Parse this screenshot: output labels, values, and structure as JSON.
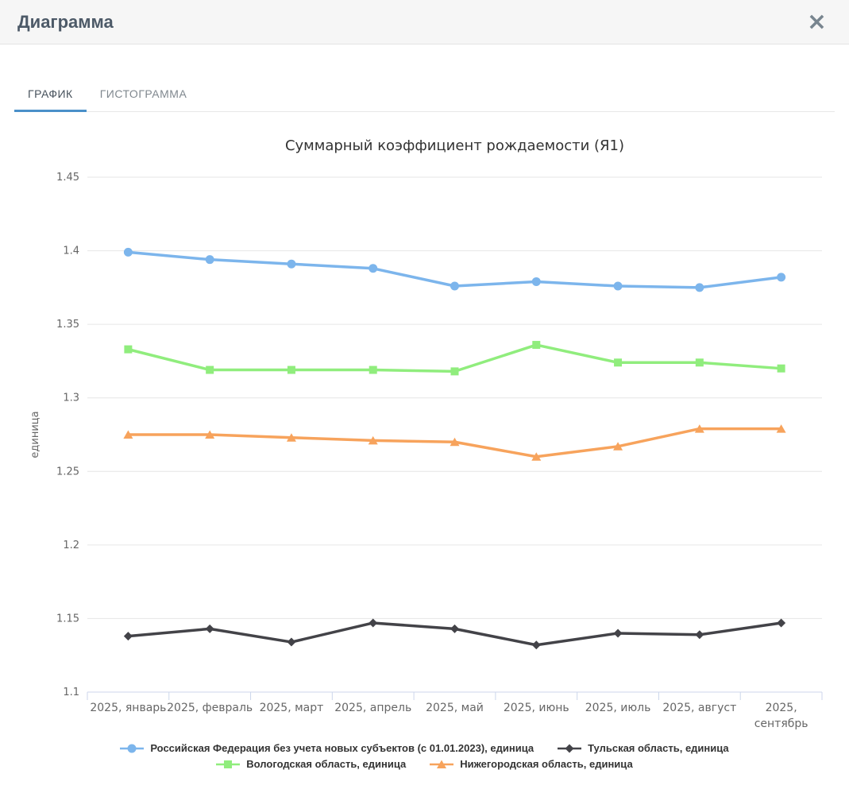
{
  "dialog": {
    "title": "Диаграмма",
    "close_icon": "×"
  },
  "tabs": [
    {
      "label": "ГРАФИК",
      "active": true
    },
    {
      "label": "ГИСТОГРАММА",
      "active": false
    }
  ],
  "colors": {
    "accent_blue": "#4a90c9",
    "header_background": "#f6f6f6"
  },
  "chart_data": {
    "type": "line",
    "title": "Суммарный коэффициент рождаемости (Я1)",
    "xlabel": "",
    "ylabel": "единица",
    "ylim": [
      1.1,
      1.45
    ],
    "ytick_step": 0.05,
    "grid": true,
    "legend_position": "bottom",
    "categories": [
      "2025, январь",
      "2025, февраль",
      "2025, март",
      "2025, апрель",
      "2025, май",
      "2025, июнь",
      "2025, июль",
      "2025, август",
      "2025, сентябрь"
    ],
    "series": [
      {
        "name": "Российская Федерация без учета новых субъектов (с 01.01.2023), единица",
        "color": "#7cb5ec",
        "marker": "circle",
        "values": [
          1.399,
          1.394,
          1.391,
          1.388,
          1.376,
          1.379,
          1.376,
          1.375,
          1.382
        ]
      },
      {
        "name": "Тульская область, единица",
        "color": "#434348",
        "marker": "diamond",
        "values": [
          1.138,
          1.143,
          1.134,
          1.147,
          1.143,
          1.132,
          1.14,
          1.139,
          1.147
        ]
      },
      {
        "name": "Вологодская область, единица",
        "color": "#90ed7d",
        "marker": "square",
        "values": [
          1.333,
          1.319,
          1.319,
          1.319,
          1.318,
          1.336,
          1.324,
          1.324,
          1.32
        ]
      },
      {
        "name": "Нижегородская область, единица",
        "color": "#f7a35c",
        "marker": "triangle",
        "values": [
          1.275,
          1.275,
          1.273,
          1.271,
          1.27,
          1.26,
          1.267,
          1.279,
          1.279
        ]
      }
    ]
  }
}
